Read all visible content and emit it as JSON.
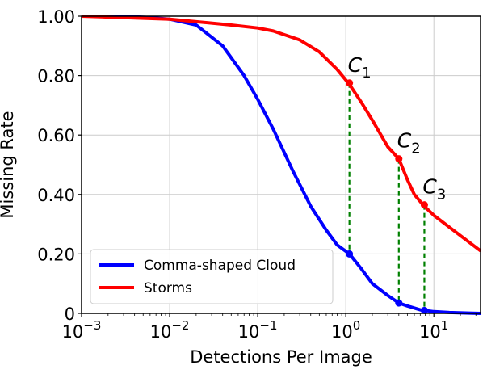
{
  "chart_data": {
    "type": "line",
    "xlabel": "Detections Per Image",
    "ylabel": "Missing Rate",
    "xscale": "log",
    "xlim_exp": [
      -3,
      1.53
    ],
    "ylim": [
      0,
      1
    ],
    "grid": true,
    "legend_position": "lower-left",
    "x_ticks": [
      {
        "base": "10",
        "exp": "−3"
      },
      {
        "base": "10",
        "exp": "−2"
      },
      {
        "base": "10",
        "exp": "−1"
      },
      {
        "base": "10",
        "exp": "0"
      },
      {
        "base": "10",
        "exp": "1"
      }
    ],
    "y_ticks": [
      "0",
      "0.20",
      "0.40",
      "0.60",
      "0.80",
      "1.00"
    ],
    "series": [
      {
        "name": "Comma-shaped Cloud",
        "color": "#0000ff",
        "x": [
          0.001,
          0.003,
          0.006,
          0.01,
          0.02,
          0.04,
          0.07,
          0.1,
          0.15,
          0.25,
          0.4,
          0.6,
          0.8,
          1.1,
          1.5,
          2,
          3,
          4,
          5,
          7,
          10,
          15,
          25,
          34
        ],
        "y": [
          1.0,
          1.0,
          0.995,
          0.99,
          0.97,
          0.9,
          0.8,
          0.72,
          0.62,
          0.48,
          0.36,
          0.28,
          0.23,
          0.2,
          0.15,
          0.1,
          0.06,
          0.035,
          0.025,
          0.012,
          0.006,
          0.003,
          0.001,
          0.0
        ]
      },
      {
        "name": "Storms",
        "color": "#ff0000",
        "x": [
          0.001,
          0.01,
          0.05,
          0.1,
          0.15,
          0.3,
          0.5,
          0.8,
          1.1,
          1.5,
          2,
          3,
          4,
          5,
          6,
          7.8,
          10,
          15,
          25,
          34
        ],
        "y": [
          1.0,
          0.99,
          0.97,
          0.96,
          0.95,
          0.92,
          0.88,
          0.82,
          0.77,
          0.71,
          0.65,
          0.56,
          0.52,
          0.45,
          0.4,
          0.36,
          0.33,
          0.29,
          0.24,
          0.21
        ]
      }
    ],
    "annotations": [
      {
        "base": "C",
        "sub": "1",
        "x": 1.1,
        "y_red": 0.775,
        "y_blue": 0.2
      },
      {
        "base": "C",
        "sub": "2",
        "x": 4.0,
        "y_red": 0.52,
        "y_blue": 0.035
      },
      {
        "base": "C",
        "sub": "3",
        "x": 7.8,
        "y_red": 0.365,
        "y_blue": 0.01
      }
    ],
    "dashed_line_color": "#008000",
    "grid_color": "#cccccc"
  }
}
